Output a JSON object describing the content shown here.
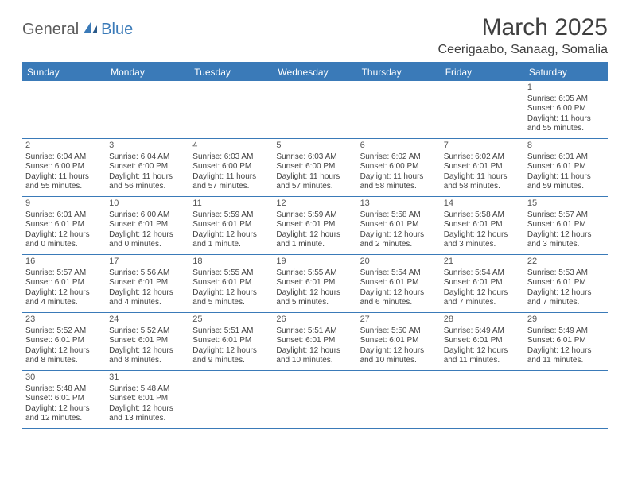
{
  "logo": {
    "part1": "General",
    "part2": "Blue"
  },
  "title": "March 2025",
  "location": "Ceerigaabo, Sanaag, Somalia",
  "colors": {
    "brand": "#3a7ab8",
    "text": "#3f3f3f",
    "cell_text": "#444444",
    "background": "#ffffff"
  },
  "weekdays": [
    "Sunday",
    "Monday",
    "Tuesday",
    "Wednesday",
    "Thursday",
    "Friday",
    "Saturday"
  ],
  "weeks": [
    [
      null,
      null,
      null,
      null,
      null,
      null,
      {
        "n": "1",
        "sr": "Sunrise: 6:05 AM",
        "ss": "Sunset: 6:00 PM",
        "dl": "Daylight: 11 hours and 55 minutes."
      }
    ],
    [
      {
        "n": "2",
        "sr": "Sunrise: 6:04 AM",
        "ss": "Sunset: 6:00 PM",
        "dl": "Daylight: 11 hours and 55 minutes."
      },
      {
        "n": "3",
        "sr": "Sunrise: 6:04 AM",
        "ss": "Sunset: 6:00 PM",
        "dl": "Daylight: 11 hours and 56 minutes."
      },
      {
        "n": "4",
        "sr": "Sunrise: 6:03 AM",
        "ss": "Sunset: 6:00 PM",
        "dl": "Daylight: 11 hours and 57 minutes."
      },
      {
        "n": "5",
        "sr": "Sunrise: 6:03 AM",
        "ss": "Sunset: 6:00 PM",
        "dl": "Daylight: 11 hours and 57 minutes."
      },
      {
        "n": "6",
        "sr": "Sunrise: 6:02 AM",
        "ss": "Sunset: 6:00 PM",
        "dl": "Daylight: 11 hours and 58 minutes."
      },
      {
        "n": "7",
        "sr": "Sunrise: 6:02 AM",
        "ss": "Sunset: 6:01 PM",
        "dl": "Daylight: 11 hours and 58 minutes."
      },
      {
        "n": "8",
        "sr": "Sunrise: 6:01 AM",
        "ss": "Sunset: 6:01 PM",
        "dl": "Daylight: 11 hours and 59 minutes."
      }
    ],
    [
      {
        "n": "9",
        "sr": "Sunrise: 6:01 AM",
        "ss": "Sunset: 6:01 PM",
        "dl": "Daylight: 12 hours and 0 minutes."
      },
      {
        "n": "10",
        "sr": "Sunrise: 6:00 AM",
        "ss": "Sunset: 6:01 PM",
        "dl": "Daylight: 12 hours and 0 minutes."
      },
      {
        "n": "11",
        "sr": "Sunrise: 5:59 AM",
        "ss": "Sunset: 6:01 PM",
        "dl": "Daylight: 12 hours and 1 minute."
      },
      {
        "n": "12",
        "sr": "Sunrise: 5:59 AM",
        "ss": "Sunset: 6:01 PM",
        "dl": "Daylight: 12 hours and 1 minute."
      },
      {
        "n": "13",
        "sr": "Sunrise: 5:58 AM",
        "ss": "Sunset: 6:01 PM",
        "dl": "Daylight: 12 hours and 2 minutes."
      },
      {
        "n": "14",
        "sr": "Sunrise: 5:58 AM",
        "ss": "Sunset: 6:01 PM",
        "dl": "Daylight: 12 hours and 3 minutes."
      },
      {
        "n": "15",
        "sr": "Sunrise: 5:57 AM",
        "ss": "Sunset: 6:01 PM",
        "dl": "Daylight: 12 hours and 3 minutes."
      }
    ],
    [
      {
        "n": "16",
        "sr": "Sunrise: 5:57 AM",
        "ss": "Sunset: 6:01 PM",
        "dl": "Daylight: 12 hours and 4 minutes."
      },
      {
        "n": "17",
        "sr": "Sunrise: 5:56 AM",
        "ss": "Sunset: 6:01 PM",
        "dl": "Daylight: 12 hours and 4 minutes."
      },
      {
        "n": "18",
        "sr": "Sunrise: 5:55 AM",
        "ss": "Sunset: 6:01 PM",
        "dl": "Daylight: 12 hours and 5 minutes."
      },
      {
        "n": "19",
        "sr": "Sunrise: 5:55 AM",
        "ss": "Sunset: 6:01 PM",
        "dl": "Daylight: 12 hours and 5 minutes."
      },
      {
        "n": "20",
        "sr": "Sunrise: 5:54 AM",
        "ss": "Sunset: 6:01 PM",
        "dl": "Daylight: 12 hours and 6 minutes."
      },
      {
        "n": "21",
        "sr": "Sunrise: 5:54 AM",
        "ss": "Sunset: 6:01 PM",
        "dl": "Daylight: 12 hours and 7 minutes."
      },
      {
        "n": "22",
        "sr": "Sunrise: 5:53 AM",
        "ss": "Sunset: 6:01 PM",
        "dl": "Daylight: 12 hours and 7 minutes."
      }
    ],
    [
      {
        "n": "23",
        "sr": "Sunrise: 5:52 AM",
        "ss": "Sunset: 6:01 PM",
        "dl": "Daylight: 12 hours and 8 minutes."
      },
      {
        "n": "24",
        "sr": "Sunrise: 5:52 AM",
        "ss": "Sunset: 6:01 PM",
        "dl": "Daylight: 12 hours and 8 minutes."
      },
      {
        "n": "25",
        "sr": "Sunrise: 5:51 AM",
        "ss": "Sunset: 6:01 PM",
        "dl": "Daylight: 12 hours and 9 minutes."
      },
      {
        "n": "26",
        "sr": "Sunrise: 5:51 AM",
        "ss": "Sunset: 6:01 PM",
        "dl": "Daylight: 12 hours and 10 minutes."
      },
      {
        "n": "27",
        "sr": "Sunrise: 5:50 AM",
        "ss": "Sunset: 6:01 PM",
        "dl": "Daylight: 12 hours and 10 minutes."
      },
      {
        "n": "28",
        "sr": "Sunrise: 5:49 AM",
        "ss": "Sunset: 6:01 PM",
        "dl": "Daylight: 12 hours and 11 minutes."
      },
      {
        "n": "29",
        "sr": "Sunrise: 5:49 AM",
        "ss": "Sunset: 6:01 PM",
        "dl": "Daylight: 12 hours and 11 minutes."
      }
    ],
    [
      {
        "n": "30",
        "sr": "Sunrise: 5:48 AM",
        "ss": "Sunset: 6:01 PM",
        "dl": "Daylight: 12 hours and 12 minutes."
      },
      {
        "n": "31",
        "sr": "Sunrise: 5:48 AM",
        "ss": "Sunset: 6:01 PM",
        "dl": "Daylight: 12 hours and 13 minutes."
      },
      null,
      null,
      null,
      null,
      null
    ]
  ]
}
